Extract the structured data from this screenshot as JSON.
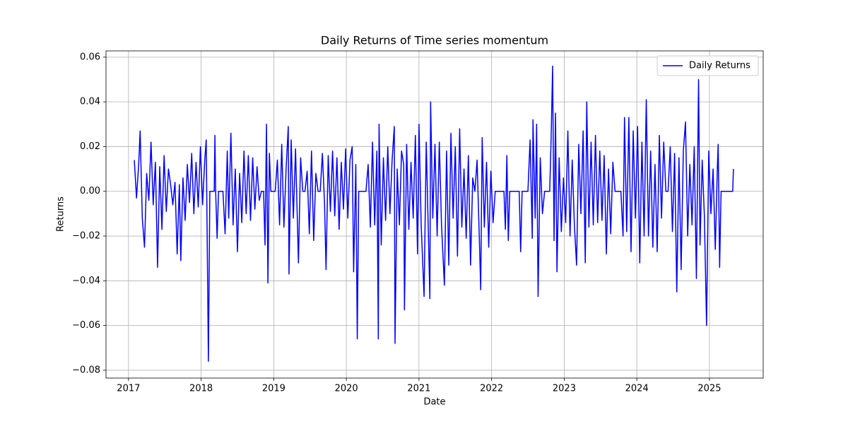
{
  "chart_data": {
    "type": "line",
    "title": "Daily Returns of Time series momentum",
    "x_label": "Date",
    "y_label": "Returns",
    "xlim": [
      2016.69,
      2025.74
    ],
    "ylim": [
      -0.0835,
      0.0628
    ],
    "xticks": [
      2017,
      2018,
      2019,
      2020,
      2021,
      2022,
      2023,
      2024,
      2025
    ],
    "yticks": [
      0.06,
      0.04,
      0.02,
      {
        "value": 0,
        "label": "0.00"
      },
      {
        "value": -0.02,
        "label": "−0.02"
      },
      {
        "value": -0.04,
        "label": "−0.04"
      },
      {
        "value": -0.06,
        "label": "−0.06"
      },
      {
        "value": -0.08,
        "label": "−0.08"
      }
    ],
    "grid": true,
    "legend": "upper right",
    "x": [
      2017.08,
      2017.11,
      2017.14,
      2017.16,
      2017.19,
      2017.22,
      2017.25,
      2017.28,
      2017.31,
      2017.34,
      2017.37,
      2017.4,
      2017.43,
      2017.46,
      2017.49,
      2017.52,
      2017.55,
      2017.58,
      2017.61,
      2017.64,
      2017.67,
      2017.7,
      2017.72,
      2017.75,
      2017.78,
      2017.81,
      2017.84,
      2017.87,
      2017.9,
      2017.93,
      2017.96,
      2017.99,
      2018.02,
      2018.05,
      2018.07,
      2018.1,
      2018.12,
      2018.18,
      2018.19,
      2018.2,
      2018.22,
      2018.24,
      2018.3,
      2018.33,
      2018.36,
      2018.38,
      2018.41,
      2018.44,
      2018.47,
      2018.5,
      2018.53,
      2018.56,
      2018.59,
      2018.62,
      2018.65,
      2018.68,
      2018.71,
      2018.74,
      2018.77,
      2018.8,
      2018.83,
      2018.86,
      2018.88,
      2018.9,
      2018.92,
      2018.94,
      2018.96,
      2019.02,
      2019.05,
      2019.08,
      2019.11,
      2019.14,
      2019.17,
      2019.2,
      2019.21,
      2019.24,
      2019.27,
      2019.3,
      2019.34,
      2019.37,
      2019.4,
      2019.43,
      2019.46,
      2019.49,
      2019.52,
      2019.55,
      2019.58,
      2019.61,
      2019.64,
      2019.67,
      2019.7,
      2019.72,
      2019.75,
      2019.78,
      2019.81,
      2019.84,
      2019.87,
      2019.9,
      2019.93,
      2019.96,
      2019.99,
      2020.02,
      2020.05,
      2020.08,
      2020.1,
      2020.13,
      2020.15,
      2020.17,
      2020.27,
      2020.3,
      2020.33,
      2020.36,
      2020.39,
      2020.42,
      2020.44,
      2020.45,
      2020.48,
      2020.51,
      2020.54,
      2020.57,
      2020.6,
      2020.63,
      2020.66,
      2020.67,
      2020.7,
      2020.73,
      2020.76,
      2020.79,
      2020.8,
      2020.83,
      2020.86,
      2020.89,
      2020.92,
      2020.95,
      2020.98,
      2021.0,
      2021.03,
      2021.07,
      2021.1,
      2021.13,
      2021.15,
      2021.16,
      2021.19,
      2021.22,
      2021.25,
      2021.28,
      2021.31,
      2021.35,
      2021.38,
      2021.41,
      2021.44,
      2021.47,
      2021.5,
      2021.53,
      2021.56,
      2021.59,
      2021.62,
      2021.65,
      2021.68,
      2021.71,
      2021.74,
      2021.77,
      2021.8,
      2021.83,
      2021.85,
      2021.87,
      2021.9,
      2021.93,
      2021.96,
      2021.99,
      2022.02,
      2022.05,
      2022.17,
      2022.19,
      2022.21,
      2022.23,
      2022.25,
      2022.38,
      2022.4,
      2022.42,
      2022.5,
      2022.53,
      2022.56,
      2022.57,
      2022.6,
      2022.62,
      2022.64,
      2022.67,
      2022.7,
      2022.73,
      2022.8,
      2022.82,
      2022.84,
      2022.86,
      2022.88,
      2022.9,
      2022.93,
      2022.96,
      2022.99,
      2023.02,
      2023.05,
      2023.08,
      2023.11,
      2023.14,
      2023.17,
      2023.2,
      2023.23,
      2023.26,
      2023.29,
      2023.31,
      2023.34,
      2023.37,
      2023.4,
      2023.43,
      2023.46,
      2023.49,
      2023.52,
      2023.55,
      2023.58,
      2023.61,
      2023.64,
      2023.67,
      2023.7,
      2023.78,
      2023.81,
      2023.83,
      2023.86,
      2023.89,
      2023.92,
      2023.95,
      2023.98,
      2024.01,
      2024.04,
      2024.07,
      2024.1,
      2024.13,
      2024.16,
      2024.19,
      2024.22,
      2024.25,
      2024.28,
      2024.31,
      2024.34,
      2024.37,
      2024.4,
      2024.43,
      2024.46,
      2024.49,
      2024.52,
      2024.55,
      2024.58,
      2024.61,
      2024.64,
      2024.67,
      2024.7,
      2024.73,
      2024.76,
      2024.79,
      2024.82,
      2024.85,
      2024.87,
      2024.9,
      2024.93,
      2024.96,
      2024.99,
      2025.02,
      2025.05,
      2025.08,
      2025.11,
      2025.12,
      2025.14,
      2025.16,
      2025.32,
      2025.33
    ],
    "series": [
      {
        "name": "Daily Returns",
        "color": "#0000ff",
        "values": [
          0.014,
          -0.003,
          0.012,
          0.027,
          -0.012,
          -0.025,
          0.008,
          -0.004,
          0.022,
          -0.006,
          0.013,
          -0.034,
          0.011,
          -0.017,
          0.016,
          -0.009,
          0.01,
          0.003,
          -0.006,
          0.004,
          -0.028,
          0.003,
          -0.031,
          0.006,
          -0.013,
          0.012,
          -0.005,
          0.017,
          -0.01,
          0.013,
          -0.007,
          0.02,
          -0.006,
          0.014,
          0.023,
          -0.076,
          0,
          0,
          0.025,
          0,
          -0.021,
          0,
          0,
          -0.019,
          0.018,
          -0.012,
          0.026,
          -0.015,
          0.01,
          -0.027,
          0.008,
          -0.014,
          0.018,
          -0.01,
          0.016,
          -0.013,
          0.015,
          -0.008,
          0.011,
          -0.004,
          0,
          0,
          -0.024,
          0.03,
          -0.041,
          0.017,
          0,
          0,
          0.014,
          -0.015,
          0.021,
          -0.016,
          0.01,
          0.029,
          -0.037,
          0.023,
          -0.012,
          0.019,
          -0.032,
          0.015,
          0,
          0,
          0.009,
          -0.019,
          0.018,
          -0.022,
          0.008,
          0,
          0,
          0.017,
          -0.006,
          -0.035,
          0.016,
          -0.009,
          0.018,
          -0.011,
          0.015,
          -0.017,
          0.013,
          -0.008,
          0.019,
          -0.012,
          0.014,
          0.02,
          -0.036,
          0.012,
          -0.066,
          0,
          0,
          0.012,
          -0.016,
          0.022,
          -0.015,
          0.018,
          -0.066,
          0.03,
          -0.024,
          0.015,
          -0.013,
          0.02,
          -0.01,
          0.014,
          0.029,
          -0.068,
          0.01,
          -0.015,
          0.018,
          0.012,
          -0.053,
          0.021,
          -0.017,
          0.013,
          -0.012,
          0.025,
          -0.028,
          0.03,
          -0.015,
          -0.047,
          0.022,
          -0.02,
          -0.048,
          0.04,
          -0.012,
          0.021,
          -0.02,
          0.022,
          -0.015,
          -0.042,
          0.018,
          -0.033,
          0.026,
          -0.012,
          0.02,
          -0.029,
          0.028,
          -0.016,
          0.01,
          -0.021,
          0.016,
          -0.033,
          0.006,
          0,
          0.014,
          -0.02,
          -0.044,
          0.024,
          -0.016,
          0.013,
          -0.025,
          0.009,
          -0.014,
          0,
          0,
          -0.017,
          0.016,
          -0.022,
          0,
          0,
          -0.027,
          0,
          0,
          0.023,
          -0.021,
          0.032,
          -0.012,
          0.03,
          -0.047,
          0.015,
          -0.01,
          0,
          0,
          0.024,
          0.056,
          -0.022,
          0.035,
          -0.036,
          0.015,
          -0.018,
          0.006,
          -0.014,
          0.027,
          -0.02,
          0.014,
          -0.015,
          -0.033,
          0.021,
          -0.01,
          0.027,
          -0.032,
          0.04,
          -0.016,
          0.022,
          -0.015,
          0.025,
          -0.014,
          0.018,
          -0.013,
          0.016,
          -0.028,
          0.01,
          -0.019,
          0.013,
          0,
          0,
          -0.02,
          0.033,
          -0.018,
          0.033,
          -0.027,
          0.027,
          -0.012,
          0.029,
          -0.032,
          0.022,
          -0.02,
          0.041,
          -0.02,
          0.018,
          -0.025,
          0.012,
          -0.027,
          0.025,
          -0.012,
          0.022,
          0,
          0,
          0.02,
          -0.018,
          0.017,
          -0.045,
          0.015,
          -0.035,
          0.018,
          0.031,
          -0.02,
          0.012,
          -0.015,
          0.02,
          -0.039,
          0.05,
          -0.024,
          0.014,
          -0.011,
          -0.06,
          0.018,
          -0.01,
          0.01,
          -0.026,
          0.012,
          0.021,
          -0.034,
          0,
          0,
          0.01
        ]
      }
    ]
  }
}
